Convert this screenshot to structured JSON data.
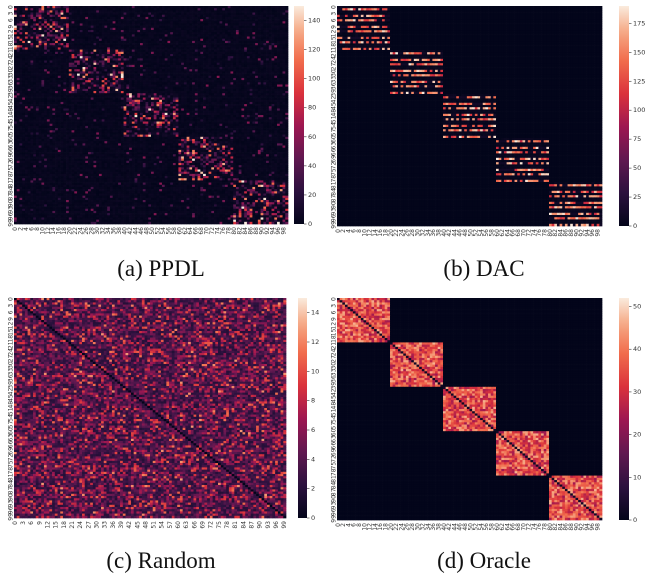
{
  "captions": {
    "a": "(a) PPDL",
    "b": "(b) DAC",
    "c": "(c) Random",
    "d": "(d) Oracle"
  },
  "chart_data": [
    {
      "panel": "a",
      "type": "heatmap",
      "title": "(a) PPDL",
      "size": 100,
      "x_tick_step": 2,
      "y_tick_step": 3,
      "colorbar": {
        "min": 0,
        "max": 150,
        "ticks": [
          0,
          20,
          40,
          60,
          80,
          100,
          120,
          140
        ]
      },
      "pattern": "noisy block diagonal",
      "block_size": 20,
      "in_block_level": 0.35,
      "off_block_level": 0.03,
      "colormap": "rocket"
    },
    {
      "panel": "b",
      "type": "heatmap",
      "title": "(b) DAC",
      "size": 100,
      "x_tick_step": 2,
      "y_tick_step": 3,
      "colorbar": {
        "min": 0,
        "max": 190,
        "ticks": [
          0,
          25,
          50,
          75,
          100,
          125,
          150,
          175
        ]
      },
      "pattern": "striped block diagonal",
      "block_size": 20,
      "in_block_level": 0.85,
      "off_block_level": 0.0,
      "colormap": "rocket"
    },
    {
      "panel": "c",
      "type": "heatmap",
      "title": "(c) Random",
      "size": 100,
      "x_tick_step": 3,
      "y_tick_step": 3,
      "colorbar": {
        "min": 0,
        "max": 15,
        "ticks": [
          0,
          2,
          4,
          6,
          8,
          10,
          12,
          14
        ]
      },
      "pattern": "uniform random with zero diagonal",
      "colormap": "rocket"
    },
    {
      "panel": "d",
      "type": "heatmap",
      "title": "(d) Oracle",
      "size": 100,
      "x_tick_step": 2,
      "y_tick_step": 3,
      "colorbar": {
        "min": 0,
        "max": 52,
        "ticks": [
          0,
          10,
          20,
          30,
          40,
          50
        ]
      },
      "pattern": "dense block diagonal",
      "block_size": 20,
      "in_block_level": 0.7,
      "off_block_level": 0.0,
      "colormap": "rocket"
    }
  ]
}
